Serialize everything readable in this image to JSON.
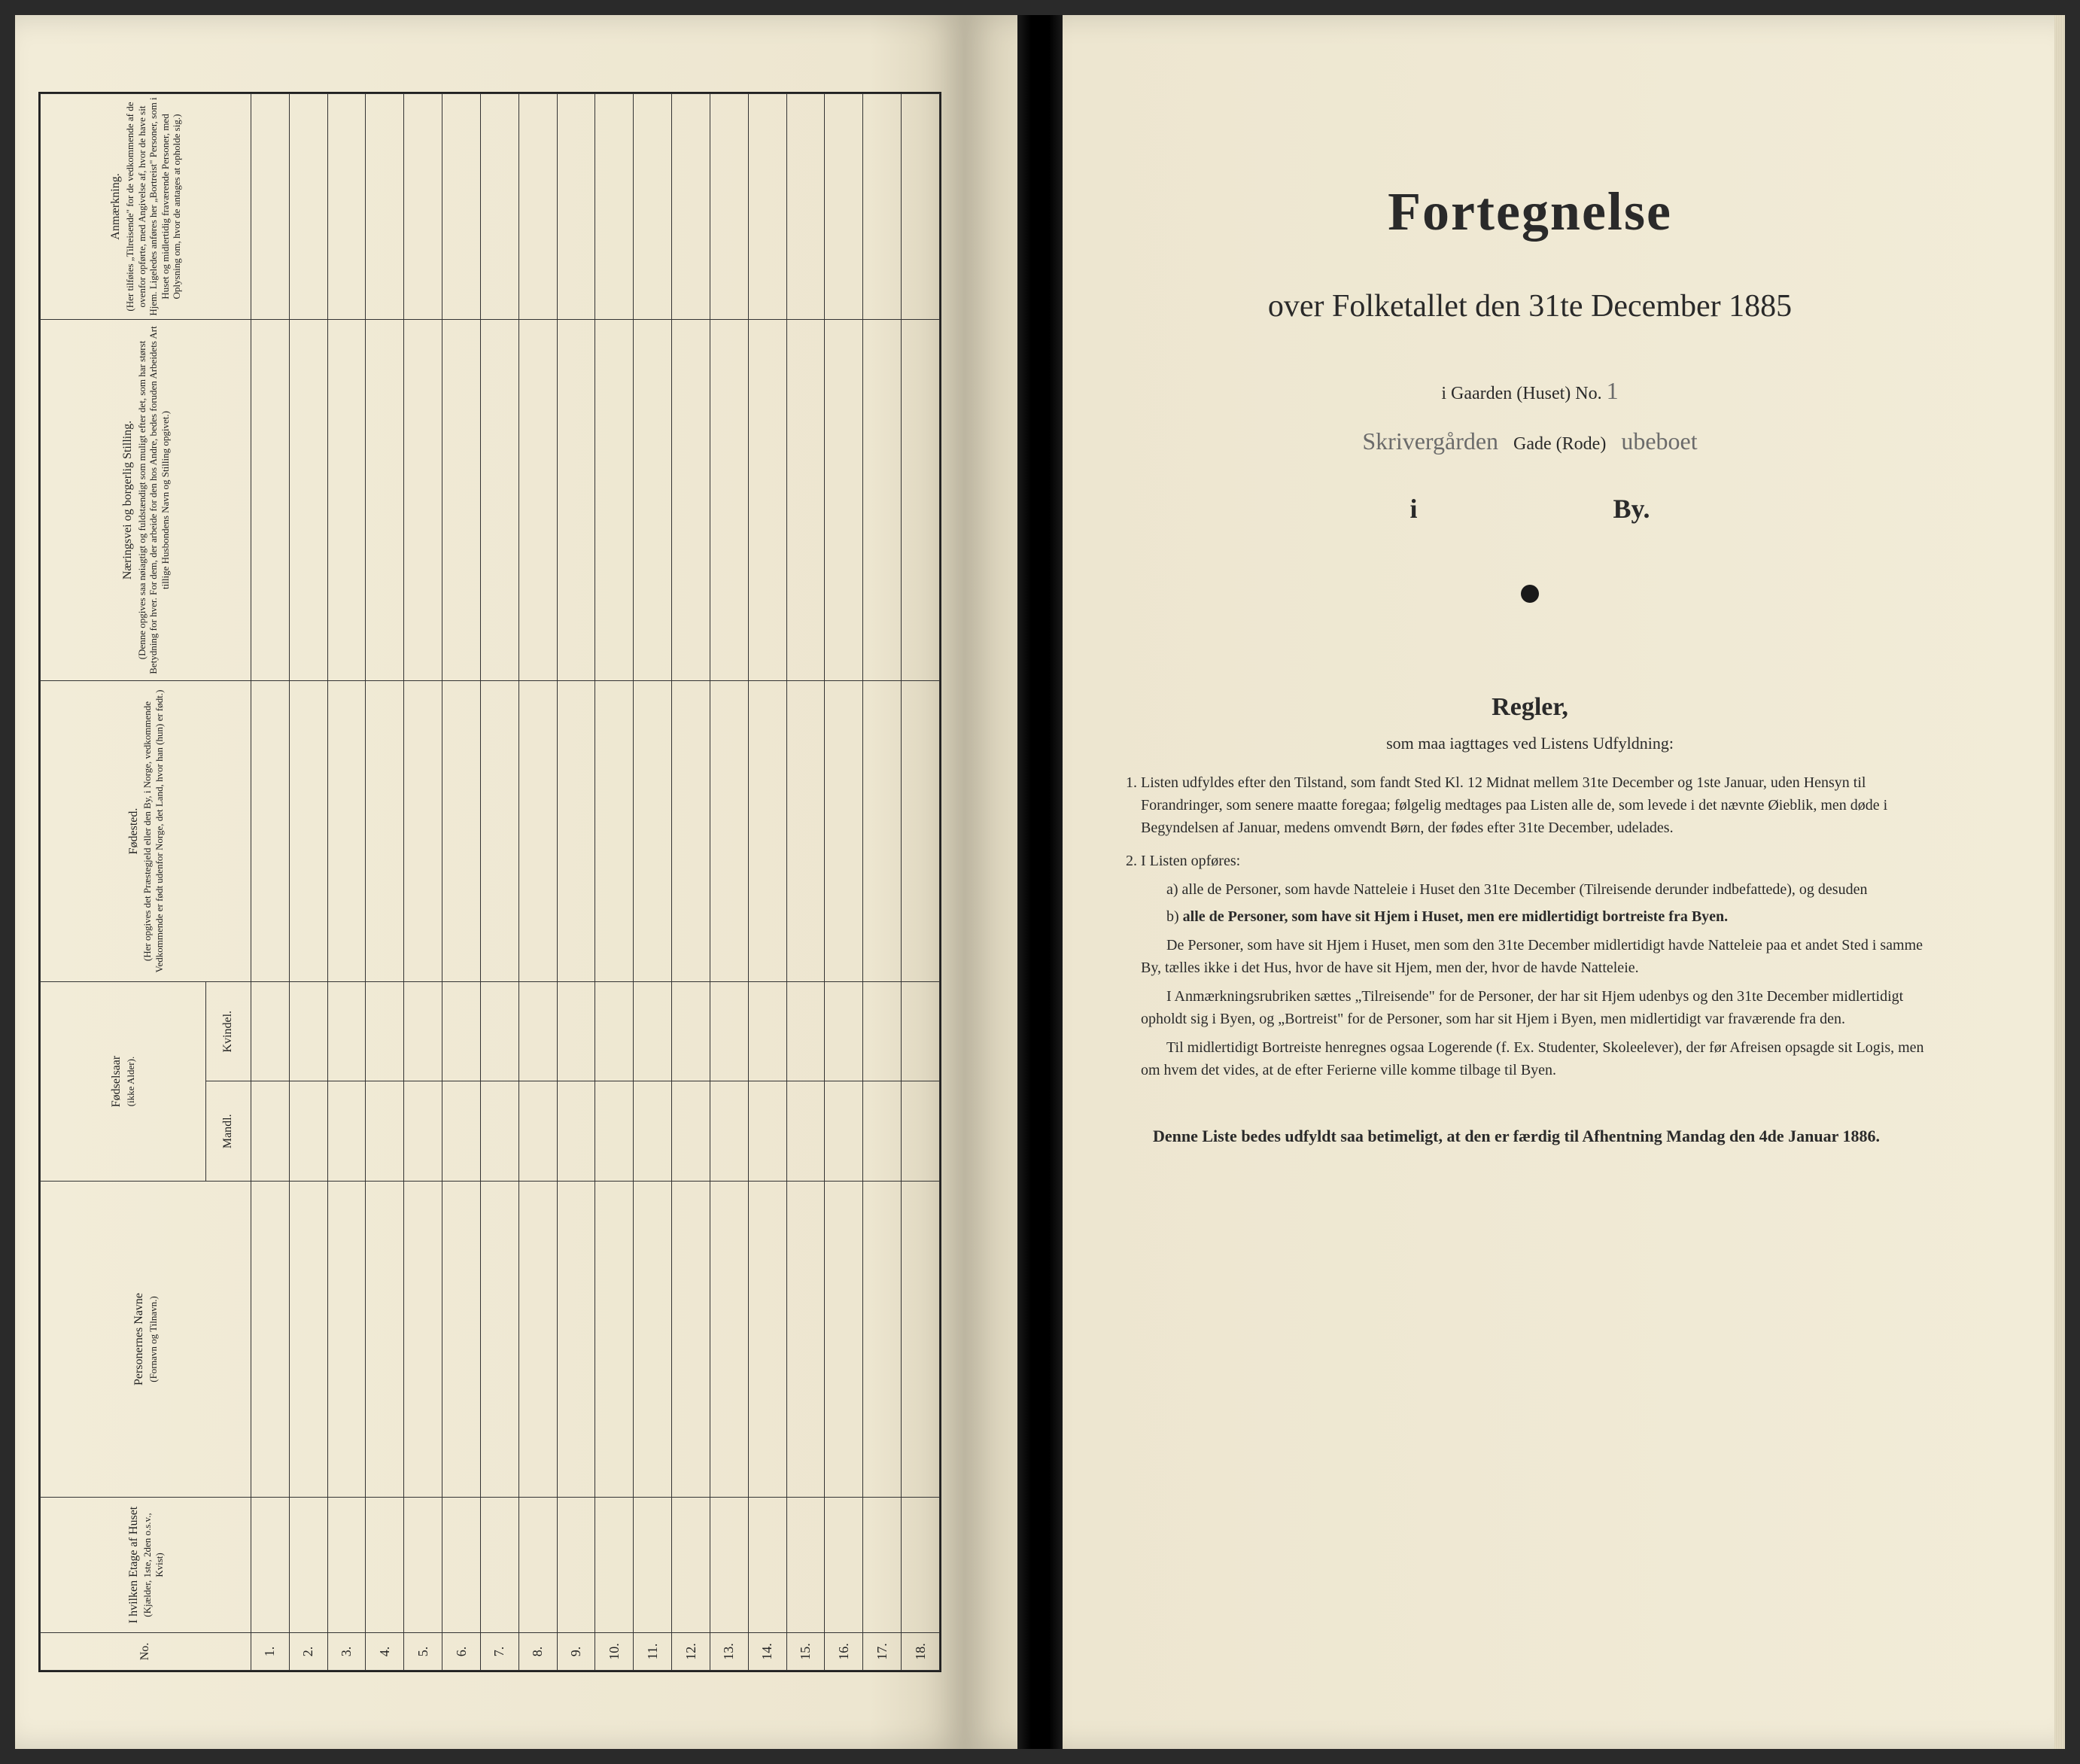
{
  "colors": {
    "paper": "#ede6d0",
    "paper_edge": "#d8d0b8",
    "ink": "#2a2a2a",
    "rule": "#333333",
    "handwriting": "#6b6b6b",
    "spine": "#000000",
    "background": "#2a2a2a"
  },
  "left_page": {
    "headers": {
      "no": "No.",
      "floor": "I hvilken Etage af Huset",
      "floor_sub": "(Kjælder, 1ste, 2den o.s.v., Kvist)",
      "names": "Personernes Navne",
      "names_sub": "(Fornavn og Tilnavn.)",
      "birthyear": "Fødselsaar",
      "birthyear_sub": "(ikke Alder).",
      "male": "Mandl.",
      "female": "Kvindel.",
      "birthplace": "Fødested.",
      "birthplace_sub": "(Her opgives det Præstegjeld eller den By, i Norge, vedkommende Vedkommende er født udenfor Norge, det Land, hvor han (hun) er født.)",
      "occupation": "Næringsvei og borgerlig Stilling.",
      "occupation_sub": "(Denne opgives saa nøiagtigt og fuldstændigt som muligt efter det, som har størst Betydning for hver. For dem, der arbeide for den hos Andre, bedes foruden Arbeidets Art tillige Husbondens Navn og Stilling opgivet.)",
      "remarks": "Anmærkning.",
      "remarks_sub": "(Her tilføies „Tilreisende\" for de vedkommende af de ovenfor opførte, med Angivelse af, hvor de have sit Hjem. Ligeledes anføres her „Bortreist\" Personer, som i Huset og midlertidig fraværende Personer, med Oplysning om, hvor de antages at opholde sig.)"
    },
    "row_numbers": [
      "1.",
      "2.",
      "3.",
      "4.",
      "5.",
      "6.",
      "7.",
      "8.",
      "9.",
      "10.",
      "11.",
      "12.",
      "13.",
      "14.",
      "15.",
      "16.",
      "17.",
      "18."
    ]
  },
  "right_page": {
    "title": "Fortegnelse",
    "subtitle": "over Folketallet den 31te December 1885",
    "gaarden_label": "i Gaarden (Huset) No.",
    "gaarden_value": "1",
    "gade_handwritten_left": "Skrivergården",
    "gade_label": "Gade (Rode)",
    "gade_handwritten_right": "ubeboet",
    "i_label": "i",
    "by_label": "By.",
    "rules_title": "Regler,",
    "rules_sub": "som maa iagttages ved Listens Udfyldning:",
    "rule1": "Listen udfyldes efter den Tilstand, som fandt Sted Kl. 12 Midnat mellem 31te December og 1ste Januar, uden Hensyn til Forandringer, som senere maatte foregaa; følgelig medtages paa Listen alle de, som levede i det nævnte Øieblik, men døde i Begyndelsen af Januar, medens omvendt Børn, der fødes efter 31te December, udelades.",
    "rule2_intro": "I Listen opføres:",
    "rule2_a_label": "a)",
    "rule2_a": "alle de Personer, som havde Natteleie i Huset den 31te December (Tilreisende derunder indbefattede), og desuden",
    "rule2_b_label": "b)",
    "rule2_b": "alle de Personer, som have sit Hjem i Huset, men ere midlertidigt bortreiste fra Byen.",
    "rule2_p1": "De Personer, som have sit Hjem i Huset, men som den 31te December midlertidigt havde Natteleie paa et andet Sted i samme By, tælles ikke i det Hus, hvor de have sit Hjem, men der, hvor de havde Natteleie.",
    "rule2_p2": "I Anmærkningsrubriken sættes „Tilreisende\" for de Personer, der har sit Hjem udenbys og den 31te December midlertidigt opholdt sig i Byen, og „Bortreist\" for de Personer, som har sit Hjem i Byen, men midlertidigt var fraværende fra den.",
    "rule2_p3": "Til midlertidigt Bortreiste henregnes ogsaa Logerende (f. Ex. Studenter, Skoleelever), der før Afreisen opsagde sit Logis, men om hvem det vides, at de efter Ferierne ville komme tilbage til Byen.",
    "closing": "Denne Liste bedes udfyldt saa betimeligt, at den er færdig til Afhentning Mandag den 4de Januar 1886."
  }
}
